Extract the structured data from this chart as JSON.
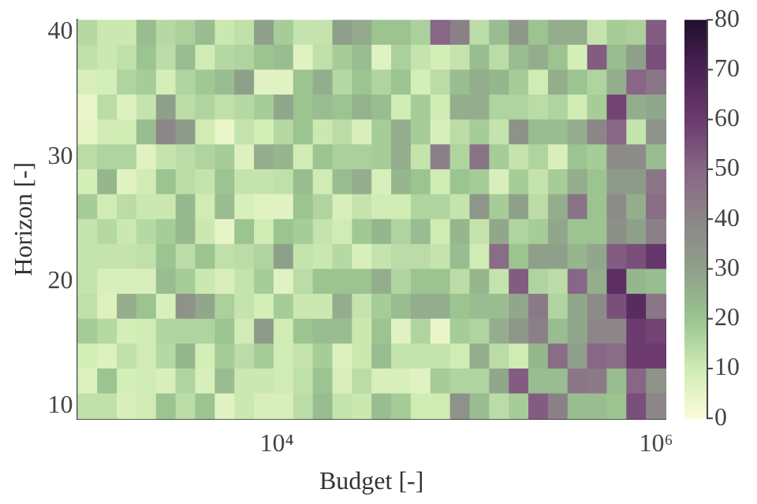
{
  "chart_data": {
    "type": "heatmap",
    "xlabel": "Budget [-]",
    "ylabel": "Horizon [-]",
    "log": "x",
    "xlim": [
      890,
      1120000
    ],
    "ylim": [
      9,
      41
    ],
    "xticks": [
      {
        "value": 10000,
        "label": "10⁴"
      },
      {
        "value": 1000000,
        "label": "10⁶"
      }
    ],
    "yticks": [
      10,
      20,
      30,
      40
    ],
    "clim": [
      0,
      80
    ],
    "cticks": [
      0,
      10,
      20,
      30,
      40,
      50,
      60,
      70,
      80
    ],
    "cells": [
      [
        15,
        11,
        11,
        22,
        15,
        17,
        22,
        11,
        13,
        30,
        18,
        12,
        12,
        30,
        27,
        20,
        20,
        17,
        50,
        42,
        14,
        22,
        33,
        20,
        26,
        26,
        12,
        18,
        17,
        52
      ],
      [
        13,
        11,
        13,
        20,
        14,
        22,
        10,
        15,
        16,
        20,
        22,
        6,
        13,
        18,
        22,
        6,
        17,
        12,
        9,
        12,
        22,
        14,
        22,
        26,
        20,
        9,
        52,
        22,
        30,
        55
      ],
      [
        8,
        9,
        16,
        18,
        9,
        16,
        19,
        22,
        30,
        6,
        6,
        20,
        26,
        15,
        20,
        16,
        20,
        9,
        14,
        22,
        26,
        24,
        18,
        10,
        26,
        20,
        16,
        26,
        50,
        45
      ],
      [
        4,
        14,
        7,
        12,
        30,
        14,
        16,
        13,
        15,
        18,
        28,
        20,
        22,
        20,
        25,
        22,
        10,
        18,
        10,
        26,
        26,
        16,
        16,
        14,
        16,
        10,
        18,
        58,
        26,
        28
      ],
      [
        5,
        10,
        10,
        22,
        40,
        32,
        10,
        4,
        12,
        9,
        15,
        20,
        11,
        14,
        8,
        18,
        26,
        18,
        8,
        14,
        18,
        12,
        35,
        22,
        22,
        26,
        40,
        50,
        12,
        35
      ],
      [
        14,
        16,
        16,
        6,
        12,
        14,
        16,
        18,
        7,
        26,
        24,
        10,
        20,
        17,
        17,
        18,
        26,
        12,
        42,
        16,
        46,
        18,
        12,
        16,
        8,
        20,
        18,
        38,
        38,
        22
      ],
      [
        9,
        24,
        6,
        10,
        20,
        14,
        12,
        20,
        12,
        12,
        13,
        22,
        10,
        22,
        26,
        8,
        24,
        20,
        10,
        20,
        18,
        8,
        18,
        12,
        18,
        26,
        20,
        32,
        32,
        45
      ],
      [
        18,
        10,
        14,
        11,
        11,
        23,
        10,
        22,
        8,
        6,
        6,
        20,
        16,
        8,
        12,
        10,
        10,
        16,
        16,
        12,
        34,
        18,
        30,
        14,
        26,
        46,
        20,
        38,
        26,
        48
      ],
      [
        12,
        15,
        11,
        15,
        18,
        23,
        11,
        5,
        20,
        10,
        20,
        18,
        12,
        10,
        19,
        24,
        16,
        22,
        10,
        24,
        12,
        28,
        16,
        18,
        28,
        20,
        20,
        36,
        30,
        42
      ],
      [
        12,
        12,
        12,
        13,
        20,
        14,
        20,
        13,
        14,
        16,
        30,
        12,
        11,
        15,
        8,
        12,
        14,
        14,
        12,
        22,
        10,
        48,
        20,
        30,
        30,
        24,
        28,
        52,
        55,
        62
      ],
      [
        12,
        8,
        8,
        8,
        22,
        18,
        11,
        8,
        12,
        18,
        6,
        14,
        20,
        20,
        20,
        26,
        16,
        20,
        20,
        14,
        24,
        12,
        52,
        16,
        14,
        50,
        26,
        65,
        24,
        22
      ],
      [
        13,
        7,
        26,
        20,
        8,
        35,
        28,
        17,
        12,
        9,
        18,
        11,
        11,
        26,
        12,
        18,
        22,
        26,
        26,
        20,
        22,
        22,
        28,
        44,
        16,
        28,
        38,
        55,
        66,
        45
      ],
      [
        18,
        15,
        9,
        10,
        16,
        16,
        16,
        20,
        10,
        32,
        10,
        20,
        22,
        22,
        11,
        20,
        6,
        16,
        4,
        18,
        16,
        26,
        34,
        42,
        22,
        28,
        40,
        40,
        60,
        58
      ],
      [
        9,
        7,
        13,
        10,
        15,
        24,
        9,
        18,
        14,
        18,
        10,
        12,
        18,
        7,
        11,
        22,
        12,
        12,
        12,
        10,
        26,
        14,
        10,
        24,
        48,
        30,
        50,
        48,
        60,
        60
      ],
      [
        7,
        20,
        9,
        10,
        8,
        16,
        8,
        22,
        11,
        11,
        10,
        13,
        20,
        8,
        14,
        8,
        8,
        6,
        18,
        16,
        16,
        28,
        52,
        22,
        22,
        45,
        44,
        22,
        50,
        35
      ],
      [
        13,
        13,
        8,
        10,
        20,
        14,
        20,
        6,
        11,
        8,
        8,
        14,
        22,
        12,
        11,
        22,
        18,
        10,
        10,
        35,
        22,
        14,
        18,
        52,
        42,
        22,
        22,
        20,
        55,
        40
      ]
    ]
  }
}
